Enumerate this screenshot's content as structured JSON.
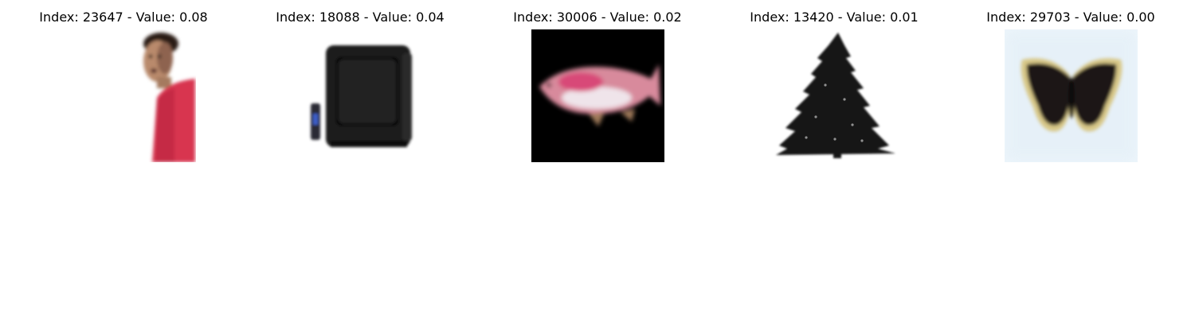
{
  "panels": [
    {
      "title": "Index: 23647 - Value: 0.08",
      "index": "23647",
      "value": "0.08",
      "depicts": "person"
    },
    {
      "title": "Index: 18088 - Value: 0.04",
      "index": "18088",
      "value": "0.04",
      "depicts": "television"
    },
    {
      "title": "Index: 30006 - Value: 0.02",
      "index": "30006",
      "value": "0.02",
      "depicts": "fish"
    },
    {
      "title": "Index: 13420 - Value: 0.01",
      "index": "13420",
      "value": "0.01",
      "depicts": "pine-tree"
    },
    {
      "title": "Index: 29703 - Value: 0.00",
      "index": "29703",
      "value": "0.00",
      "depicts": "butterfly"
    }
  ],
  "colors": {
    "background": "#ffffff",
    "title_text": "#000000",
    "fish_background": "#000000",
    "butterfly_background": "#eef6fb",
    "shirt": "#d8344f",
    "fish_body": "#d88a9c",
    "butterfly_wing": "#1a1418",
    "butterfly_edge": "#d8c888"
  }
}
